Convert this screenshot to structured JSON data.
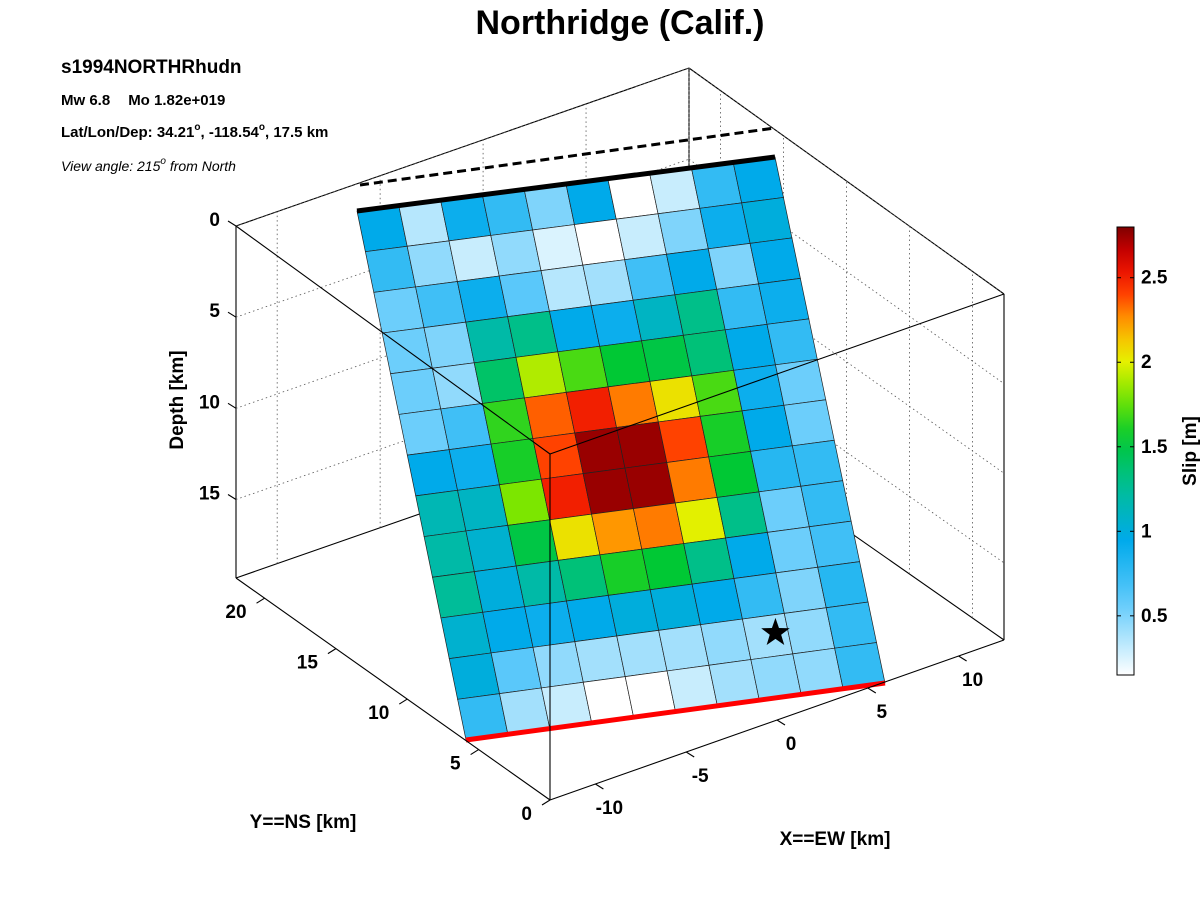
{
  "chart_data": {
    "type": "heatmap",
    "title": "Northridge (Calif.)",
    "event_id": "s1994NORTHRhudn",
    "mw_label": "Mw 6.8",
    "mo_label": "Mo 1.82e+019",
    "location": {
      "prefix": "Lat/Lon/Dep: ",
      "lat": "34.21",
      "lon": "-118.54",
      "dep": "17.5 km"
    },
    "view": {
      "prefix": "View angle: 215",
      "suffix": " from North"
    },
    "xlabel": "X==EW [km]",
    "ylabel": "Y==NS [km]",
    "zlabel": "Depth [km]",
    "x_ticks": [
      -10,
      -5,
      0,
      5,
      10
    ],
    "y_ticks": [
      0,
      5,
      10,
      15,
      20
    ],
    "z_ticks": [
      0,
      5,
      10,
      15
    ],
    "colorbar": {
      "label": "Slip [m]",
      "ticks": [
        0.5,
        1,
        1.5,
        2,
        2.5
      ],
      "range": [
        0.15,
        2.8
      ],
      "colormap": "jet-white"
    },
    "n_strike": 10,
    "n_dip": 13,
    "slip_rows_top_to_bottom": [
      [
        0.95,
        0.35,
        0.9,
        0.75,
        0.5,
        0.95,
        0.15,
        0.3,
        0.75,
        0.95
      ],
      [
        0.75,
        0.45,
        0.3,
        0.45,
        0.25,
        0.15,
        0.3,
        0.5,
        0.9,
        1.0
      ],
      [
        0.55,
        0.7,
        0.9,
        0.6,
        0.35,
        0.4,
        0.7,
        0.95,
        0.5,
        0.95
      ],
      [
        0.55,
        0.5,
        1.2,
        1.3,
        0.95,
        0.9,
        1.1,
        1.3,
        0.75,
        0.9
      ],
      [
        0.55,
        0.45,
        1.4,
        1.9,
        1.7,
        1.55,
        1.5,
        1.35,
        0.95,
        0.75
      ],
      [
        0.55,
        0.7,
        1.65,
        2.35,
        2.5,
        2.3,
        2.05,
        1.7,
        0.9,
        0.55
      ],
      [
        0.95,
        0.9,
        1.6,
        2.4,
        2.75,
        2.75,
        2.4,
        1.6,
        0.95,
        0.55
      ],
      [
        1.15,
        1.1,
        1.8,
        2.5,
        2.75,
        2.75,
        2.3,
        1.55,
        0.8,
        0.75
      ],
      [
        1.2,
        1.05,
        1.5,
        2.05,
        2.25,
        2.3,
        2.0,
        1.3,
        0.55,
        0.75
      ],
      [
        1.25,
        1.0,
        1.2,
        1.35,
        1.6,
        1.55,
        1.3,
        0.95,
        0.55,
        0.7
      ],
      [
        1.05,
        0.95,
        0.9,
        0.95,
        1.0,
        1.0,
        0.95,
        0.75,
        0.5,
        0.8
      ],
      [
        1.0,
        0.6,
        0.45,
        0.4,
        0.4,
        0.4,
        0.45,
        0.4,
        0.45,
        0.75
      ],
      [
        0.75,
        0.4,
        0.3,
        0.15,
        0.15,
        0.3,
        0.4,
        0.45,
        0.45,
        0.75
      ]
    ],
    "hypocenter": {
      "strike_frac": 0.77,
      "dip_frac": 0.88
    }
  }
}
